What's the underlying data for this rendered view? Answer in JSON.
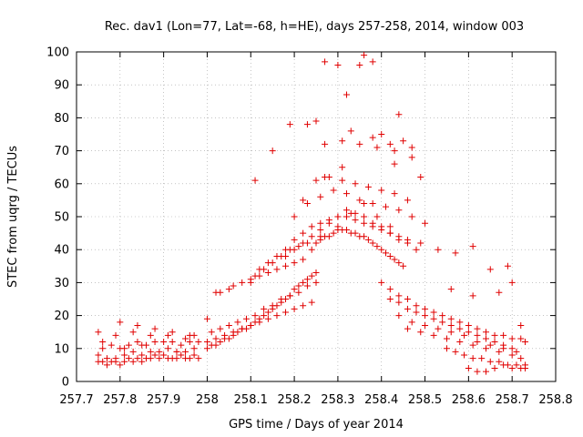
{
  "chart_data": {
    "type": "scatter",
    "title": "Rec. dav1 (Lon=77, Lat=-68, h=HE), days 257-258, 2014, window 003",
    "xlabel": "GPS time / Days of year 2014",
    "ylabel": "STEC from uqrg / TECUs",
    "xlim": [
      257.7,
      258.8
    ],
    "ylim": [
      0,
      100
    ],
    "xticks": [
      "257.7",
      "257.8",
      "257.9",
      "258",
      "258.1",
      "258.2",
      "258.3",
      "258.4",
      "258.5",
      "258.6",
      "258.7",
      "258.8"
    ],
    "yticks": [
      "0",
      "10",
      "20",
      "30",
      "40",
      "50",
      "60",
      "70",
      "80",
      "90",
      "100"
    ],
    "grid": true,
    "marker": "+",
    "color": "#e00000",
    "x": [
      257.75,
      257.76,
      257.77,
      257.78,
      257.79,
      257.8,
      257.81,
      257.82,
      257.83,
      257.84,
      257.85,
      257.86,
      257.87,
      257.88,
      257.89,
      257.9,
      257.91,
      257.92,
      257.93,
      257.94,
      257.95,
      257.96,
      257.97,
      257.98,
      257.75,
      257.77,
      257.79,
      257.81,
      257.83,
      257.85,
      257.87,
      257.89,
      257.91,
      257.93,
      257.95,
      257.97,
      257.76,
      257.78,
      257.8,
      257.82,
      257.84,
      257.86,
      257.88,
      257.9,
      257.92,
      257.94,
      257.96,
      257.98,
      257.75,
      257.79,
      257.83,
      257.87,
      257.91,
      257.95,
      257.97,
      257.76,
      257.8,
      257.84,
      257.88,
      257.92,
      257.96,
      257.81,
      257.85,
      257.93,
      258.0,
      258.01,
      258.02,
      258.03,
      258.04,
      258.05,
      258.06,
      258.07,
      258.08,
      258.09,
      258.1,
      258.11,
      258.12,
      258.13,
      258.14,
      258.15,
      258.16,
      258.17,
      258.18,
      258.19,
      258.2,
      258.21,
      258.22,
      258.23,
      258.24,
      258.25,
      258.0,
      258.02,
      258.04,
      258.06,
      258.08,
      258.1,
      258.12,
      258.14,
      258.16,
      258.18,
      258.2,
      258.22,
      258.24,
      258.01,
      258.03,
      258.05,
      258.07,
      258.09,
      258.11,
      258.13,
      258.15,
      258.17,
      258.19,
      258.21,
      258.23,
      258.25,
      258.0,
      258.02,
      258.03,
      258.05,
      258.06,
      258.08,
      258.1,
      258.12,
      258.14,
      258.16,
      258.18,
      258.2,
      258.22,
      258.1,
      258.11,
      258.13,
      258.15,
      258.17,
      258.19,
      258.21,
      258.23,
      258.25,
      258.26,
      258.27,
      258.28,
      258.29,
      258.3,
      258.31,
      258.32,
      258.33,
      258.34,
      258.35,
      258.36,
      258.37,
      258.38,
      258.39,
      258.4,
      258.41,
      258.42,
      258.43,
      258.44,
      258.45,
      258.12,
      258.14,
      258.16,
      258.18,
      258.2,
      258.22,
      258.24,
      258.26,
      258.28,
      258.3,
      258.32,
      258.34,
      258.36,
      258.38,
      258.4,
      258.42,
      258.44,
      258.46,
      258.18,
      258.2,
      258.22,
      258.24,
      258.26,
      258.28,
      258.3,
      258.32,
      258.34,
      258.36,
      258.38,
      258.4,
      258.42,
      258.44,
      258.46,
      258.48,
      258.2,
      258.23,
      258.26,
      258.29,
      258.32,
      258.35,
      258.38,
      258.41,
      258.44,
      258.47,
      258.5,
      258.22,
      258.25,
      258.28,
      258.31,
      258.34,
      258.37,
      258.4,
      258.43,
      258.46,
      258.24,
      258.26,
      258.3,
      258.33,
      258.36,
      258.39,
      258.42,
      258.27,
      258.31,
      258.35,
      258.39,
      258.43,
      258.47,
      258.11,
      258.15,
      258.19,
      258.23,
      258.25,
      258.27,
      258.3,
      258.32,
      258.35,
      258.38,
      258.4,
      258.42,
      258.44,
      258.47,
      258.49,
      258.27,
      258.31,
      258.33,
      258.36,
      258.38,
      258.43,
      258.45,
      258.4,
      258.42,
      258.44,
      258.46,
      258.48,
      258.5,
      258.52,
      258.54,
      258.56,
      258.58,
      258.6,
      258.62,
      258.64,
      258.66,
      258.68,
      258.7,
      258.72,
      258.73,
      258.42,
      258.44,
      258.46,
      258.48,
      258.5,
      258.52,
      258.54,
      258.56,
      258.58,
      258.6,
      258.62,
      258.64,
      258.66,
      258.68,
      258.7,
      258.44,
      258.47,
      258.5,
      258.53,
      258.56,
      258.59,
      258.62,
      258.65,
      258.68,
      258.71,
      258.46,
      258.49,
      258.52,
      258.55,
      258.58,
      258.61,
      258.64,
      258.67,
      258.7,
      258.72,
      258.55,
      258.57,
      258.59,
      258.61,
      258.63,
      258.65,
      258.67,
      258.69,
      258.71,
      258.73,
      258.6,
      258.62,
      258.64,
      258.66,
      258.68,
      258.7,
      258.72,
      258.73,
      258.49,
      258.53,
      258.57,
      258.61,
      258.65,
      258.69,
      258.72,
      258.56,
      258.61,
      258.67,
      258.7
    ],
    "y": [
      6,
      6,
      5,
      6,
      6,
      5,
      6,
      7,
      6,
      7,
      6,
      7,
      7,
      8,
      7,
      8,
      7,
      7,
      7,
      8,
      7,
      7,
      8,
      7,
      8,
      7,
      7,
      8,
      9,
      8,
      9,
      9,
      10,
      9,
      9,
      10,
      10,
      11,
      10,
      11,
      12,
      11,
      12,
      12,
      12,
      11,
      12,
      12,
      15,
      14,
      15,
      14,
      14,
      13,
      14,
      12,
      18,
      17,
      16,
      15,
      14,
      10,
      11,
      9,
      10,
      11,
      11,
      12,
      13,
      13,
      14,
      15,
      16,
      16,
      17,
      18,
      19,
      20,
      21,
      22,
      23,
      24,
      25,
      26,
      28,
      29,
      30,
      31,
      32,
      33,
      12,
      13,
      14,
      15,
      16,
      17,
      18,
      19,
      20,
      21,
      22,
      23,
      24,
      15,
      16,
      17,
      18,
      19,
      20,
      22,
      23,
      25,
      26,
      27,
      29,
      30,
      19,
      27,
      27,
      28,
      29,
      30,
      31,
      32,
      33,
      34,
      35,
      36,
      37,
      30,
      32,
      34,
      36,
      38,
      40,
      41,
      42,
      42,
      43,
      44,
      44,
      45,
      46,
      46,
      46,
      45,
      45,
      44,
      44,
      43,
      42,
      41,
      40,
      39,
      38,
      37,
      36,
      35,
      34,
      36,
      38,
      40,
      43,
      45,
      47,
      48,
      49,
      50,
      50,
      49,
      48,
      47,
      46,
      45,
      44,
      43,
      38,
      40,
      42,
      44,
      46,
      48,
      50,
      52,
      51,
      50,
      48,
      47,
      45,
      43,
      42,
      40,
      50,
      54,
      56,
      58,
      57,
      55,
      54,
      53,
      52,
      50,
      48,
      55,
      61,
      62,
      61,
      60,
      59,
      58,
      57,
      55,
      40,
      44,
      47,
      51,
      54,
      50,
      47,
      62,
      65,
      72,
      71,
      70,
      68,
      61,
      70,
      78,
      78,
      79,
      97,
      96,
      87,
      96,
      97,
      75,
      72,
      81,
      71,
      62,
      72,
      73,
      76,
      99,
      74,
      66,
      73,
      30,
      28,
      26,
      25,
      23,
      22,
      21,
      20,
      19,
      18,
      17,
      16,
      15,
      14,
      14,
      13,
      13,
      12,
      25,
      24,
      22,
      21,
      20,
      19,
      18,
      17,
      16,
      15,
      14,
      13,
      12,
      11,
      10,
      20,
      18,
      17,
      16,
      15,
      14,
      12,
      11,
      10,
      9,
      16,
      15,
      14,
      13,
      12,
      11,
      10,
      9,
      8,
      7,
      10,
      9,
      8,
      7,
      7,
      6,
      6,
      5,
      5,
      5,
      4,
      3,
      3,
      4,
      5,
      4,
      4,
      4,
      42,
      40,
      39,
      41,
      34,
      35,
      17,
      28,
      26,
      27,
      30
    ]
  }
}
